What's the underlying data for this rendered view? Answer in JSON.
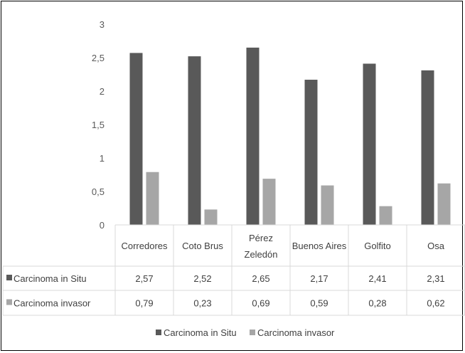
{
  "chart_data": {
    "type": "bar",
    "categories": [
      "Corredores",
      "Coto Brus",
      "Pérez Zeledón",
      "Buenos Aires",
      "Golfito",
      "Osa"
    ],
    "category_lines": [
      [
        "Corredores"
      ],
      [
        "Coto Brus"
      ],
      [
        "Pérez",
        "Zeledón"
      ],
      [
        "Buenos Aires"
      ],
      [
        "Golfito"
      ],
      [
        "Osa"
      ]
    ],
    "series": [
      {
        "name": "Carcinoma in Situ",
        "values": [
          2.57,
          2.52,
          2.65,
          2.17,
          2.41,
          2.31
        ],
        "labels": [
          "2,57",
          "2,52",
          "2,65",
          "2,17",
          "2,41",
          "2,31"
        ]
      },
      {
        "name": "Carcinoma invasor",
        "values": [
          0.79,
          0.23,
          0.69,
          0.59,
          0.28,
          0.62
        ],
        "labels": [
          "0,79",
          "0,23",
          "0,69",
          "0,59",
          "0,28",
          "0,62"
        ]
      }
    ],
    "yticks": [
      "0",
      "0,5",
      "1",
      "1,5",
      "2",
      "2,5",
      "3"
    ],
    "ylim": [
      0,
      3
    ],
    "grid": false,
    "data_table": true,
    "legend_position": "bottom",
    "colors": {
      "series_1": "#595959",
      "series_2": "#a6a6a6",
      "table_border": "#d9d9d9",
      "text": "#404040"
    }
  }
}
